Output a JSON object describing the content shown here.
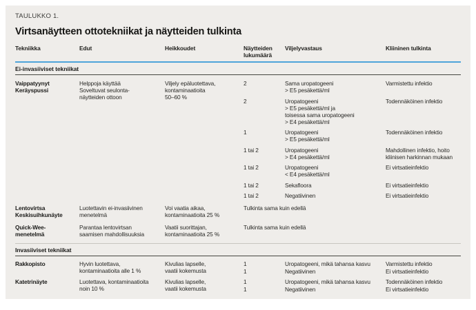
{
  "colors": {
    "accent_blue": "#4da3d9",
    "panel_bg": "#efedea",
    "text": "#22221f"
  },
  "table": {
    "label": "TAULUKKO 1.",
    "title": "Virtsanäytteen ottotekniikat ja näytteiden tulkinta",
    "columns": [
      "Tekniikka",
      "Edut",
      "Heikkoudet",
      "Näytteiden lukumäärä",
      "Viljelyvastaus",
      "Kliininen tulkinta"
    ],
    "sections": [
      {
        "heading": "Ei-invasiiviset tekniikat",
        "rows": [
          {
            "technique": "Vaippatyynyt\nKeräyspussi",
            "pros": "Helppoja käyttää\nSoveltuvat seulonta-\nnäytteiden ottoon",
            "cons": "Viljely epäluotettava,\nkontaminaatioita\n50–60 %",
            "results": [
              {
                "count": "2",
                "culture": "Sama uropatogeeni\n> E5 pesäkettä/ml",
                "interpretation": "Varmistettu infektio"
              },
              {
                "count": "2",
                "culture": "Uropatogeeni\n> E5 pesäkettä/ml ja\ntoisessa sama uropatogeeni\n> E4 pesäkettä/ml",
                "interpretation": "Todennäköinen infektio"
              },
              {
                "count": "1",
                "culture": "Uropatogeeni\n> E5 pesäkettä/ml",
                "interpretation": "Todennäköinen infektio"
              },
              {
                "count": "1 tai 2",
                "culture": "Uropatogeeni\n> E4 pesäkettä/ml",
                "interpretation": "Mahdollinen infektio, hoito\nkliinisen harkinnan mukaan"
              },
              {
                "count": "1 tai 2",
                "culture": "Uropatogeeni\n< E4 pesäkettä/ml",
                "interpretation": "Ei virtsatieinfektio"
              },
              {
                "count": "1 tai 2",
                "culture": "Sekafloora",
                "interpretation": "Ei virtsatieinfektio"
              },
              {
                "count": "1 tai 2",
                "culture": "Negatiivinen",
                "interpretation": "Ei virtsatieinfektio"
              }
            ]
          },
          {
            "technique": "Lentovirtsa\nKeskisuihkunäyte",
            "pros": "Luotettavin ei-invasiivinen\nmenetelmä",
            "cons": "Voi vaatia aikaa,\nkontaminaatioita 25 %",
            "span_note": "Tulkinta sama kuin edellä"
          },
          {
            "technique": "Quick-Wee-\nmenetelmä",
            "pros": "Parantaa lentovirtsan\nsaamisen mahdollisuuksia",
            "cons": "Vaatii suorittajan,\nkontaminaatioita 25 %",
            "span_note": "Tulkinta sama kuin edellä"
          }
        ]
      },
      {
        "heading": "Invasiiviset tekniikat",
        "rows": [
          {
            "technique": "Rakkopisto",
            "pros": "Hyvin luotettava,\nkontaminaatioita alle 1 %",
            "cons": "Kivulias lapselle,\nvaatii kokemusta",
            "results": [
              {
                "count": "1",
                "culture": "Uropatogeeni, mikä tahansa kasvu",
                "interpretation": "Varmistettu infektio"
              },
              {
                "count": "1",
                "culture": "Negatiivinen",
                "interpretation": "Ei virtsatieinfektio"
              }
            ]
          },
          {
            "technique": "Katetrinäyte",
            "pros": "Luotettava, kontaminaatioita\nnoin 10 %",
            "cons": "Kivulias lapselle,\nvaatii kokemusta",
            "results": [
              {
                "count": "1",
                "culture": "Uropatogeeni, mikä tahansa kasvu",
                "interpretation": "Todennäköinen infektio"
              },
              {
                "count": "1",
                "culture": "Negatiivinen",
                "interpretation": "Ei virtsatieinfektio"
              }
            ]
          }
        ]
      }
    ]
  }
}
